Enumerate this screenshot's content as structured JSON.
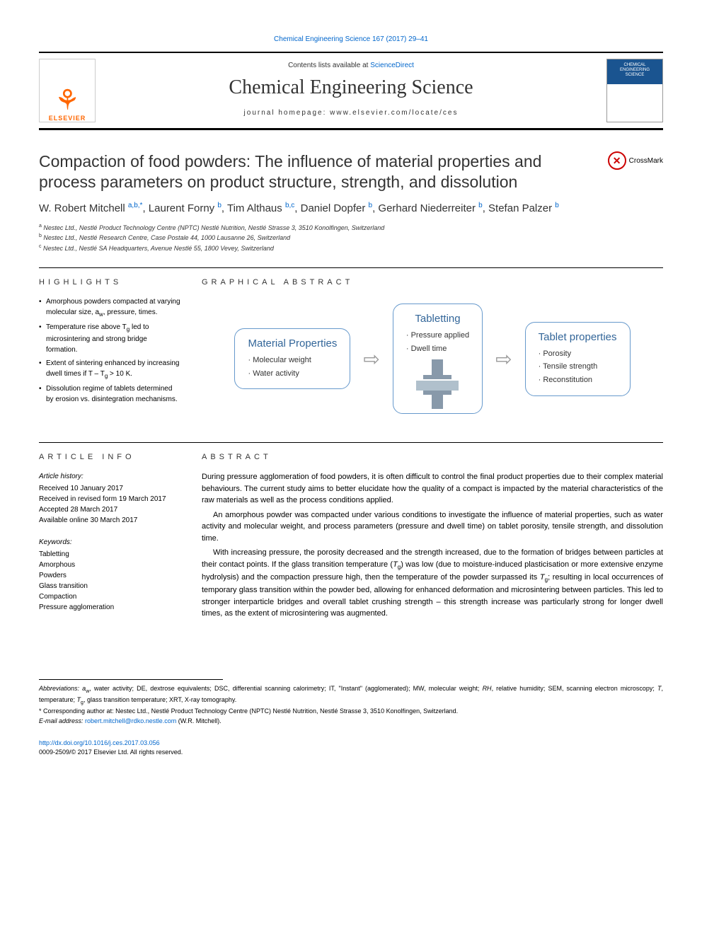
{
  "header": {
    "citation_link": "Chemical Engineering Science 167 (2017) 29–41",
    "contents_prefix": "Contents lists available at ",
    "contents_link": "ScienceDirect",
    "journal_name": "Chemical Engineering Science",
    "homepage_prefix": "journal homepage: ",
    "homepage": "www.elsevier.com/locate/ces",
    "publisher": "ELSEVIER",
    "cover_text": "CHEMICAL ENGINEERING SCIENCE"
  },
  "crossmark": {
    "label": "CrossMark"
  },
  "title": "Compaction of food powders: The influence of material properties and process parameters on product structure, strength, and dissolution",
  "authors_html": "W. Robert Mitchell <span class='sup'>a,b,*</span>, Laurent Forny <span class='sup'>b</span>, Tim Althaus <span class='sup'>b,c</span>, Daniel Dopfer <span class='sup'>b</span>, Gerhard Niederreiter <span class='sup'>b</span>, Stefan Palzer <span class='sup'>b</span>",
  "affiliations": [
    {
      "sup": "a",
      "text": "Nestec Ltd., Nestlé Product Technology Centre (NPTC) Nestlé Nutrition, Nestlé Strasse 3, 3510 Konolfingen, Switzerland"
    },
    {
      "sup": "b",
      "text": "Nestec Ltd., Nestlé Research Centre, Case Postale 44, 1000 Lausanne 26, Switzerland"
    },
    {
      "sup": "c",
      "text": "Nestec Ltd., Nestlé SA Headquarters, Avenue Nestlé 55, 1800 Vevey, Switzerland"
    }
  ],
  "highlights": {
    "heading": "HIGHLIGHTS",
    "items_html": [
      "Amorphous powders compacted at varying molecular size, a<span class='sub'>w</span>, pressure, times.",
      "Temperature rise above T<span class='sub'>g</span> led to microsintering and strong bridge formation.",
      "Extent of sintering enhanced by increasing dwell times if T – T<span class='sub'>g</span> > 10 K.",
      "Dissolution regime of tablets determined by erosion vs. disintegration mechanisms."
    ]
  },
  "graphical_abstract": {
    "heading": "GRAPHICAL ABSTRACT",
    "box_left": {
      "title": "Material Properties",
      "items": [
        "Molecular weight",
        "Water activity"
      ],
      "border_color": "#6699cc",
      "title_color": "#336699"
    },
    "box_center": {
      "title": "Tabletting",
      "items": [
        "Pressure applied",
        "Dwell time"
      ],
      "border_color": "#6699cc",
      "title_color": "#336699"
    },
    "box_right": {
      "title": "Tablet properties",
      "items": [
        "Porosity",
        "Tensile strength",
        "Reconstitution"
      ],
      "border_color": "#6699cc",
      "title_color": "#336699"
    },
    "arrow_glyph": "⇨",
    "press_colors": {
      "frame": "#8899aa",
      "mid": "#b0c0cc"
    }
  },
  "article_info": {
    "heading": "ARTICLE INFO",
    "history_label": "Article history:",
    "history": [
      "Received 10 January 2017",
      "Received in revised form 19 March 2017",
      "Accepted 28 March 2017",
      "Available online 30 March 2017"
    ],
    "keywords_label": "Keywords:",
    "keywords": [
      "Tabletting",
      "Amorphous",
      "Powders",
      "Glass transition",
      "Compaction",
      "Pressure agglomeration"
    ]
  },
  "abstract": {
    "heading": "ABSTRACT",
    "paras_html": [
      "During pressure agglomeration of food powders, it is often difficult to control the final product properties due to their complex material behaviours. The current study aims to better elucidate how the quality of a compact is impacted by the material characteristics of the raw materials as well as the process conditions applied.",
      "An amorphous powder was compacted under various conditions to investigate the influence of material properties, such as water activity and molecular weight, and process parameters (pressure and dwell time) on tablet porosity, tensile strength, and dissolution time.",
      "With increasing pressure, the porosity decreased and the strength increased, due to the formation of bridges between particles at their contact points. If the glass transition temperature (<span class='ital'>T</span><span class='sub'>g</span>) was low (due to moisture-induced plasticisation or more extensive enzyme hydrolysis) and the compaction pressure high, then the temperature of the powder surpassed its <span class='ital'>T</span><span class='sub'>g</span>; resulting in local occurrences of temporary glass transition within the powder bed, allowing for enhanced deformation and microsintering between particles. This led to stronger interparticle bridges and overall tablet crushing strength – this strength increase was particularly strong for longer dwell times, as the extent of microsintering was augmented."
    ]
  },
  "footnotes": {
    "abbrev_html": "<span class='ital'>Abbreviations:</span> <span class='ital'>a</span><span class='sub2'>w</span>, water activity; DE, dextrose equivalents; DSC, differential scanning calorimetry; IT, \"Instant\" (agglomerated); MW, molecular weight; <span class='ital'>RH</span>, relative humidity; SEM, scanning electron microscopy; <span class='ital'>T</span>, temperature; <span class='ital'>T</span><span class='sub2'>g</span>, glass transition temperature; XRT, X-ray tomography.",
    "corr_html": "* Corresponding author at: Nestec Ltd., Nestlé Product Technology Centre (NPTC) Nestlé Nutrition, Nestlé Strasse 3, 3510 Konolfingen, Switzerland.",
    "email_label": "E-mail address: ",
    "email": "robert.mitchell@rdko.nestle.com",
    "email_suffix": " (W.R. Mitchell)."
  },
  "doi": {
    "url": "http://dx.doi.org/10.1016/j.ces.2017.03.056",
    "copyright": "0009-2509/© 2017 Elsevier Ltd. All rights reserved."
  },
  "colors": {
    "link": "#0066cc",
    "elsevier_orange": "#ff6600",
    "rule": "#000000",
    "crossmark_red": "#cc0000"
  }
}
